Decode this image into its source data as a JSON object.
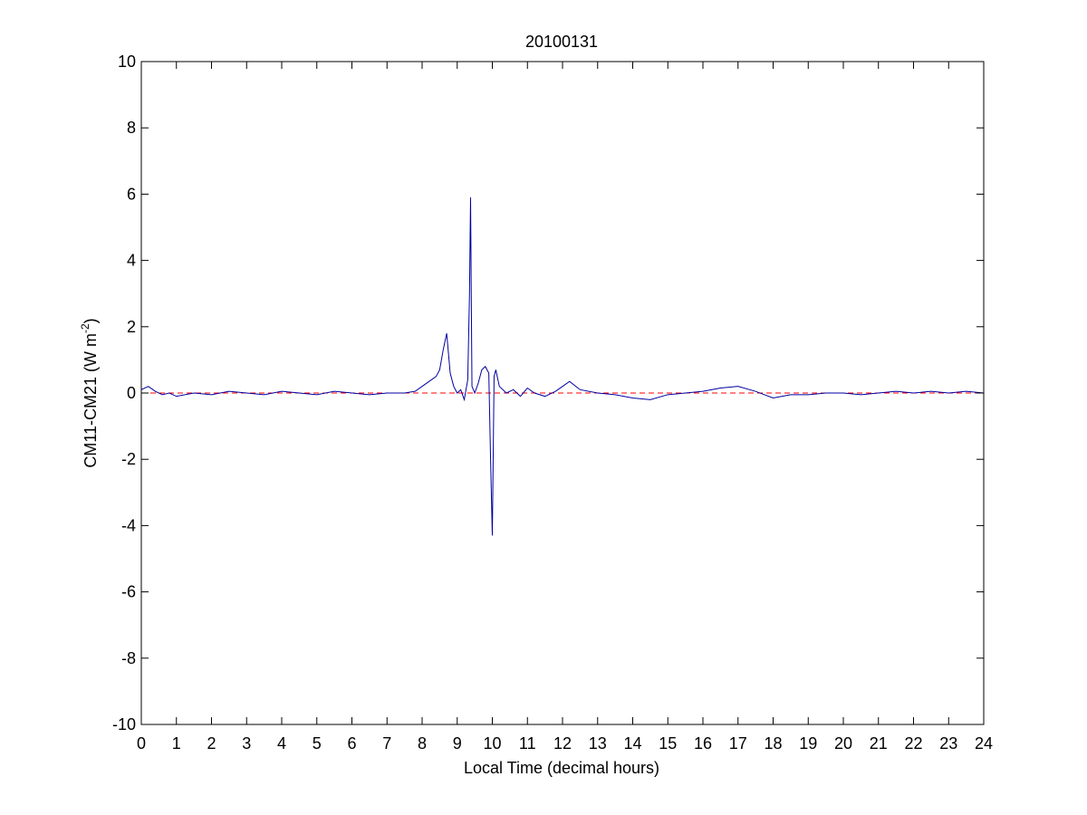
{
  "chart_data": {
    "type": "line",
    "title": "20100131",
    "xlabel": "Local Time (decimal hours)",
    "ylabel_main": "CM11-CM21 (W m",
    "ylabel_sup": "-2",
    "ylabel_close": ")",
    "xlim": [
      0,
      24
    ],
    "ylim": [
      -10,
      10
    ],
    "xticks": [
      "0",
      "1",
      "2",
      "3",
      "4",
      "5",
      "6",
      "7",
      "8",
      "9",
      "10",
      "11",
      "12",
      "13",
      "14",
      "15",
      "16",
      "17",
      "18",
      "19",
      "20",
      "21",
      "22",
      "23",
      "24"
    ],
    "yticks": [
      "10",
      "8",
      "6",
      "4",
      "2",
      "0",
      "-2",
      "-4",
      "-6",
      "-8",
      "-10"
    ],
    "grid": false,
    "series": [
      {
        "color": "#0000a0",
        "x": [
          0,
          0.2,
          0.4,
          0.6,
          0.8,
          1.0,
          1.5,
          2.0,
          2.5,
          3.0,
          3.5,
          4.0,
          4.5,
          5.0,
          5.5,
          6.0,
          6.5,
          7.0,
          7.5,
          7.8,
          8.0,
          8.2,
          8.4,
          8.5,
          8.6,
          8.7,
          8.8,
          8.9,
          9.0,
          9.1,
          9.2,
          9.3,
          9.35,
          9.38,
          9.42,
          9.5,
          9.6,
          9.7,
          9.8,
          9.9,
          9.95,
          10.0,
          10.05,
          10.1,
          10.2,
          10.4,
          10.6,
          10.8,
          11.0,
          11.2,
          11.5,
          11.8,
          12.0,
          12.2,
          12.5,
          13.0,
          13.5,
          14.0,
          14.5,
          15.0,
          15.5,
          16.0,
          16.5,
          17.0,
          17.5,
          18.0,
          18.5,
          19.0,
          19.5,
          20.0,
          20.5,
          21.0,
          21.5,
          22.0,
          22.5,
          23.0,
          23.5,
          24.0
        ],
        "y": [
          0.1,
          0.2,
          0.05,
          -0.05,
          0.0,
          -0.1,
          0.0,
          -0.05,
          0.05,
          0.0,
          -0.05,
          0.05,
          0.0,
          -0.05,
          0.05,
          0.0,
          -0.05,
          0.0,
          0.0,
          0.05,
          0.2,
          0.35,
          0.5,
          0.7,
          1.3,
          1.8,
          0.6,
          0.2,
          0.0,
          0.1,
          -0.2,
          0.4,
          3.0,
          5.9,
          0.2,
          0.0,
          0.3,
          0.7,
          0.8,
          0.6,
          -2.0,
          -4.3,
          0.5,
          0.7,
          0.2,
          0.0,
          0.1,
          -0.1,
          0.15,
          0.0,
          -0.1,
          0.05,
          0.2,
          0.35,
          0.1,
          0.0,
          -0.05,
          -0.15,
          -0.2,
          -0.05,
          0.0,
          0.05,
          0.15,
          0.2,
          0.05,
          -0.15,
          -0.05,
          -0.05,
          0.0,
          0.0,
          -0.05,
          0.0,
          0.05,
          0.0,
          0.05,
          0.0,
          0.05,
          0.0
        ]
      },
      {
        "color": "#ff0000",
        "dashed": true,
        "x": [
          0,
          24
        ],
        "y": [
          0,
          0
        ]
      }
    ]
  }
}
